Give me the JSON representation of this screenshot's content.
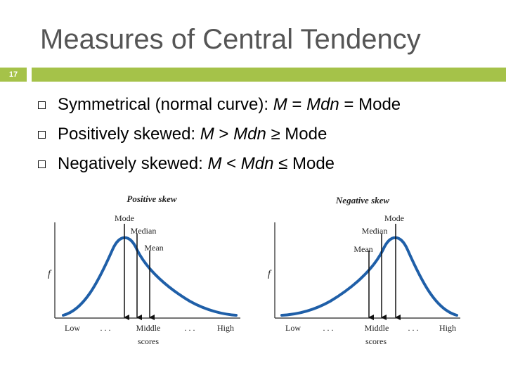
{
  "slide": {
    "title": "Measures of Central Tendency",
    "number": "17",
    "accent_color": "#a5c249"
  },
  "bullets": [
    {
      "parts": [
        {
          "t": "Symmetrical (normal curve): "
        },
        {
          "t": "M",
          "i": true
        },
        {
          "t": " = "
        },
        {
          "t": "Mdn",
          "i": true
        },
        {
          "t": " = Mode"
        }
      ]
    },
    {
      "parts": [
        {
          "t": "Positively skewed: "
        },
        {
          "t": "M",
          "i": true
        },
        {
          "t": " > "
        },
        {
          "t": "Mdn",
          "i": true
        },
        {
          "t": " ≥ Mode"
        }
      ]
    },
    {
      "parts": [
        {
          "t": "Negatively skewed: "
        },
        {
          "t": "M",
          "i": true
        },
        {
          "t": " < "
        },
        {
          "t": "Mdn",
          "i": true
        },
        {
          "t": " ≤ Mode"
        }
      ]
    }
  ],
  "figure": {
    "curve_color": "#1f5fa8",
    "positive": {
      "title": "Positive skew",
      "y_axis_label": "f",
      "labels": {
        "mode": "Mode",
        "median": "Median",
        "mean": "Mean"
      },
      "x_labels": {
        "low": "Low",
        "dots_left": ". . .",
        "middle": "Middle",
        "scores": "scores",
        "dots_right": ". . .",
        "high": "High"
      }
    },
    "negative": {
      "title": "Negative skew",
      "y_axis_label": "f",
      "labels": {
        "mode": "Mode",
        "median": "Median",
        "mean": "Mean"
      },
      "x_labels": {
        "low": "Low",
        "dots_left": ". . .",
        "middle": "Middle",
        "scores": "scores",
        "dots_right": ". . .",
        "high": "High"
      }
    }
  }
}
